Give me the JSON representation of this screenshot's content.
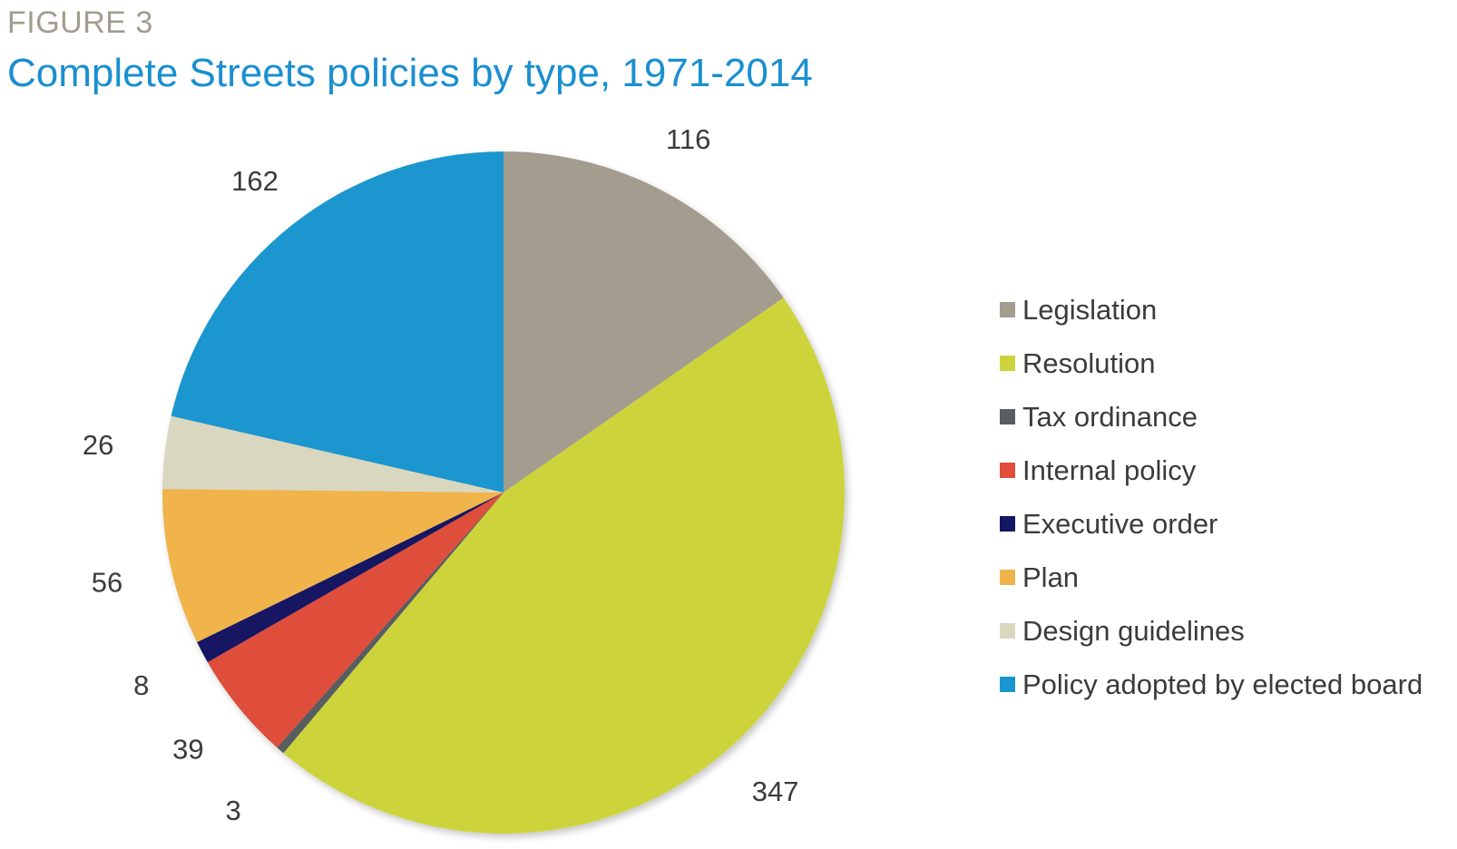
{
  "figure_label": "FIGURE 3",
  "chart_data": {
    "type": "pie",
    "title": "Complete Streets policies by type, 1971-2014",
    "start": "top (12 o'clock), clockwise",
    "slices": [
      {
        "name": "Legislation",
        "value": 116,
        "color": "#a39c8f"
      },
      {
        "name": "Resolution",
        "value": 347,
        "color": "#cdd33b"
      },
      {
        "name": "Tax ordinance",
        "value": 3,
        "color": "#595d61"
      },
      {
        "name": "Internal policy",
        "value": 39,
        "color": "#df4e3a"
      },
      {
        "name": "Executive order",
        "value": 8,
        "color": "#131764"
      },
      {
        "name": "Plan",
        "value": 56,
        "color": "#f0b44c"
      },
      {
        "name": "Design guidelines",
        "value": 26,
        "color": "#d9d7bf"
      },
      {
        "name": "Policy adopted by elected board",
        "value": 162,
        "color": "#1a96cf"
      }
    ],
    "legend_position": "right"
  }
}
